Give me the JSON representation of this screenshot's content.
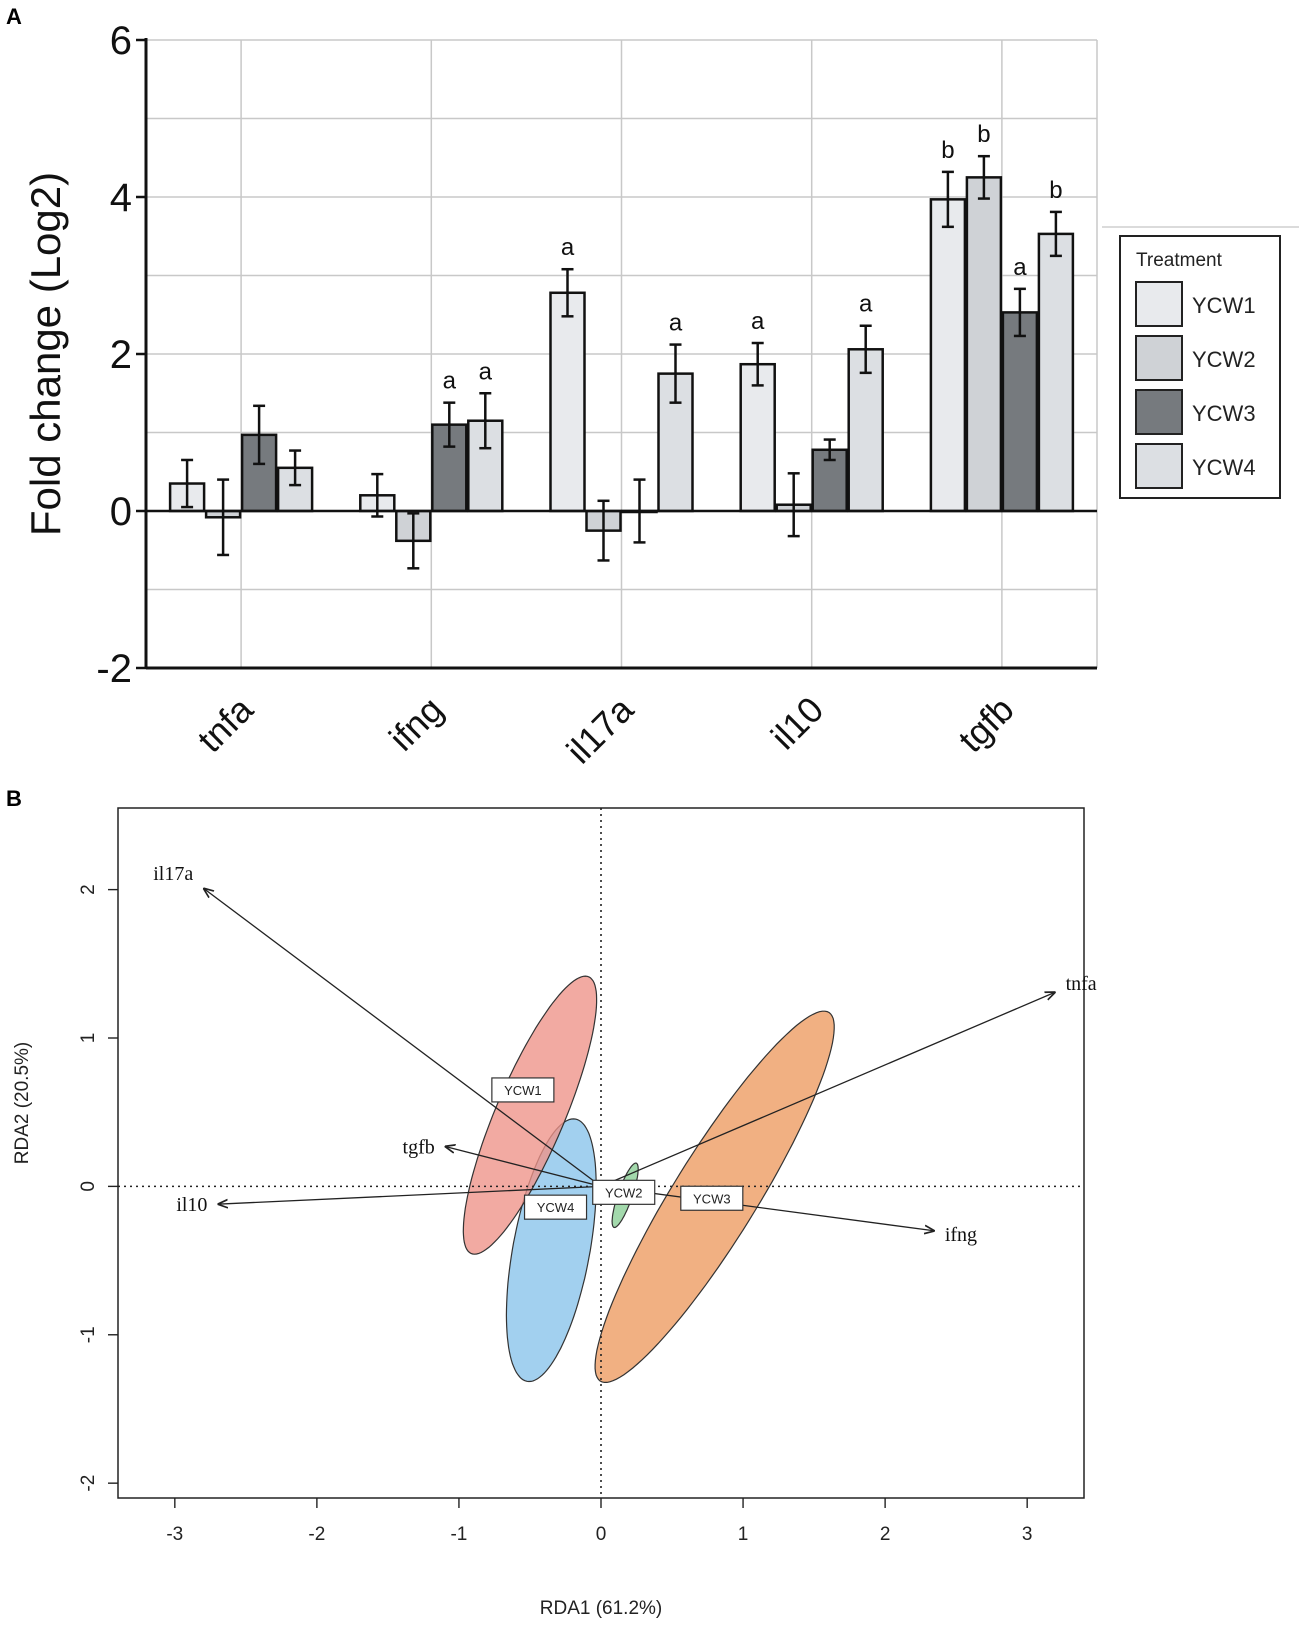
{
  "colors": {
    "YCW1": "#e8eaed",
    "YCW2": "#cfd2d6",
    "YCW3": "#767a7e",
    "YCW4": "#dcdfe3",
    "ellipse_YCW1": "#ee9288",
    "ellipse_YCW2": "#8fd19a",
    "ellipse_YCW3": "#ee9f66",
    "ellipse_YCW4": "#8ec6ec"
  },
  "chart_data": [
    {
      "panel": "A",
      "type": "bar",
      "ylabel": "Fold change (Log2)",
      "xlabel": "",
      "ylim": [
        -2,
        6
      ],
      "yticks": [
        "6",
        "4",
        "2",
        "0",
        "-2"
      ],
      "ytick_values": [
        6,
        4,
        2,
        0,
        -2
      ],
      "grid": true,
      "categories": [
        "tnfa",
        "ifng",
        "il17a",
        "il10",
        "tgfb"
      ],
      "legend": {
        "title": "Treatment",
        "position": "right",
        "items": [
          "YCW1",
          "YCW2",
          "YCW3",
          "YCW4"
        ]
      },
      "series": [
        {
          "name": "YCW1",
          "values": [
            0.35,
            0.2,
            2.78,
            1.87,
            3.97
          ],
          "errors": [
            0.3,
            0.27,
            0.3,
            0.27,
            0.35
          ],
          "labels": [
            "",
            "",
            "a",
            "a",
            "b"
          ]
        },
        {
          "name": "YCW2",
          "values": [
            -0.08,
            -0.38,
            -0.25,
            0.08,
            4.25
          ],
          "errors": [
            0.48,
            0.35,
            0.38,
            0.4,
            0.27
          ],
          "labels": [
            "",
            "",
            "",
            "",
            "b"
          ]
        },
        {
          "name": "YCW3",
          "values": [
            0.97,
            1.1,
            0.0,
            0.78,
            2.53
          ],
          "errors": [
            0.37,
            0.28,
            0.4,
            0.13,
            0.3
          ],
          "labels": [
            "",
            "a",
            "",
            "",
            "a"
          ]
        },
        {
          "name": "YCW4",
          "values": [
            0.55,
            1.15,
            1.75,
            2.06,
            3.53
          ],
          "errors": [
            0.22,
            0.35,
            0.37,
            0.3,
            0.28
          ],
          "labels": [
            "",
            "a",
            "a",
            "a",
            "b"
          ]
        }
      ]
    },
    {
      "panel": "B",
      "type": "scatter",
      "subtype": "rda-biplot",
      "xlabel": "RDA1 (61.2%)",
      "ylabel": "RDA2 (20.5%)",
      "xlim": [
        -3.4,
        3.4
      ],
      "ylim": [
        -2.1,
        2.55
      ],
      "xticks": [
        "-3",
        "-2",
        "-1",
        "0",
        "1",
        "2",
        "3"
      ],
      "xtick_values": [
        -3,
        -2,
        -1,
        0,
        1,
        2,
        3
      ],
      "yticks": [
        "-2",
        "-1",
        "0",
        "1",
        "2"
      ],
      "ytick_values": [
        -2,
        -1,
        0,
        1,
        2
      ],
      "grid": false,
      "vectors": [
        {
          "name": "il17a",
          "x": -2.8,
          "y": 2.01
        },
        {
          "name": "tnfa",
          "x": 3.2,
          "y": 1.31
        },
        {
          "name": "tgfb",
          "x": -1.1,
          "y": 0.27
        },
        {
          "name": "il10",
          "x": -2.7,
          "y": -0.12
        },
        {
          "name": "ifng",
          "x": 2.35,
          "y": -0.3
        }
      ],
      "groups": [
        {
          "name": "YCW1",
          "centroid": [
            -0.55,
            0.65
          ],
          "ellipse": {
            "cx": -0.5,
            "cy": 0.48,
            "rx": 1.02,
            "ry": 0.24,
            "angle_deg": -66
          }
        },
        {
          "name": "YCW4",
          "centroid": [
            -0.32,
            -0.14
          ],
          "ellipse": {
            "cx": -0.35,
            "cy": -0.43,
            "rx": 0.9,
            "ry": 0.27,
            "angle_deg": -79
          }
        },
        {
          "name": "YCW2",
          "centroid": [
            0.16,
            -0.04
          ],
          "ellipse": {
            "cx": 0.17,
            "cy": -0.06,
            "rx": 0.23,
            "ry": 0.05,
            "angle_deg": -70
          }
        },
        {
          "name": "YCW3",
          "centroid": [
            0.78,
            -0.08
          ],
          "ellipse": {
            "cx": 0.8,
            "cy": -0.07,
            "rx": 1.48,
            "ry": 0.29,
            "angle_deg": -57
          }
        }
      ]
    }
  ],
  "panels": {
    "A": "A",
    "B": "B"
  }
}
